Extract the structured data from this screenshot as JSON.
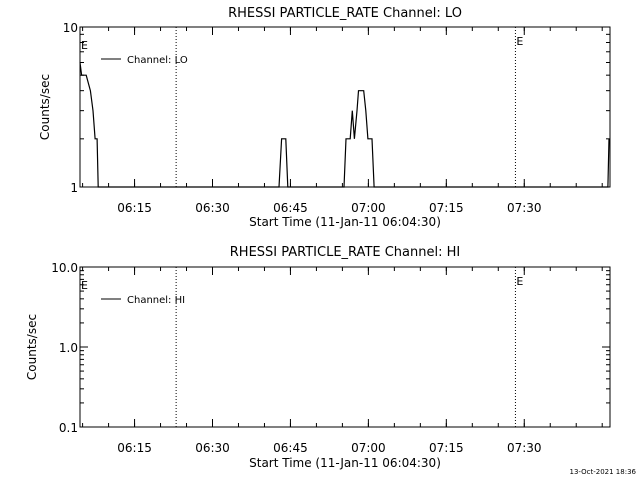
{
  "footer": {
    "timestamp": "13-Oct-2021 18:36"
  },
  "chart_data": [
    {
      "type": "line",
      "title": "RHESSI PARTICLE_RATE Channel: LO",
      "xlabel": "Start Time (11-Jan-11 06:04:30)",
      "ylabel": "Counts/sec",
      "yscale": "log",
      "ylim": [
        1,
        10
      ],
      "xlim_minutes": [
        0,
        102
      ],
      "xticks": [
        {
          "label": "06:15",
          "min": 10.5
        },
        {
          "label": "06:30",
          "min": 25.5
        },
        {
          "label": "06:45",
          "min": 40.5
        },
        {
          "label": "07:00",
          "min": 55.5
        },
        {
          "label": "07:15",
          "min": 70.5
        },
        {
          "label": "07:30",
          "min": 85.5
        }
      ],
      "yticks": [
        {
          "label": "1",
          "value": 1
        },
        {
          "label": "10",
          "value": 10
        }
      ],
      "vlines": [
        {
          "min": 18.5,
          "label": ""
        },
        {
          "min": 83.8,
          "label": "E"
        },
        {
          "min": 102,
          "label": ""
        }
      ],
      "left_marker": "E",
      "legend": {
        "label": "Channel: LO",
        "position": "top-left"
      },
      "series": [
        {
          "name": "Channel: LO",
          "points": [
            [
              0,
              6
            ],
            [
              0.3,
              5
            ],
            [
              1.2,
              5
            ],
            [
              2.0,
              4
            ],
            [
              2.5,
              3
            ],
            [
              2.9,
              2
            ],
            [
              3.3,
              2
            ],
            [
              3.5,
              1
            ],
            [
              38.3,
              1
            ],
            [
              38.8,
              2
            ],
            [
              39.6,
              2
            ],
            [
              40.0,
              1
            ],
            [
              50.8,
              1
            ],
            [
              51.2,
              2
            ],
            [
              52.0,
              2
            ],
            [
              52.4,
              3
            ],
            [
              52.8,
              2
            ],
            [
              53.3,
              3
            ],
            [
              53.6,
              4
            ],
            [
              54.6,
              4
            ],
            [
              55.0,
              3
            ],
            [
              55.4,
              2
            ],
            [
              56.2,
              2
            ],
            [
              56.6,
              1
            ],
            [
              101.6,
              1
            ],
            [
              101.8,
              2
            ]
          ]
        }
      ]
    },
    {
      "type": "line",
      "title": "RHESSI PARTICLE_RATE Channel: HI",
      "xlabel": "Start Time (11-Jan-11 06:04:30)",
      "ylabel": "Counts/sec",
      "yscale": "log",
      "ylim": [
        0.1,
        10
      ],
      "xlim_minutes": [
        0,
        102
      ],
      "xticks": [
        {
          "label": "06:15",
          "min": 10.5
        },
        {
          "label": "06:30",
          "min": 25.5
        },
        {
          "label": "06:45",
          "min": 40.5
        },
        {
          "label": "07:00",
          "min": 55.5
        },
        {
          "label": "07:15",
          "min": 70.5
        },
        {
          "label": "07:30",
          "min": 85.5
        }
      ],
      "yticks": [
        {
          "label": "0.1",
          "value": 0.1
        },
        {
          "label": "1.0",
          "value": 1
        },
        {
          "label": "10.0",
          "value": 10
        }
      ],
      "vlines": [
        {
          "min": 18.5,
          "label": ""
        },
        {
          "min": 83.8,
          "label": "E"
        },
        {
          "min": 102,
          "label": ""
        }
      ],
      "left_marker": "E",
      "legend": {
        "label": "Channel: HI",
        "position": "top-left"
      },
      "series": [
        {
          "name": "Channel: HI",
          "points": []
        }
      ]
    }
  ]
}
